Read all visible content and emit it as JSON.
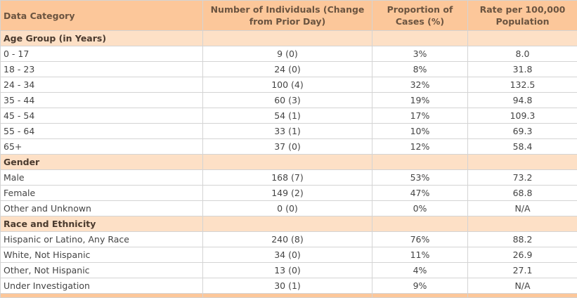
{
  "table": {
    "headers": [
      "Data Category",
      "Number of Individuals (Change from Prior Day)",
      "Proportion of Cases (%)",
      "Rate per 100,000 Population"
    ],
    "sections": [
      {
        "title": "Age Group (in Years)",
        "rows": [
          [
            "0 - 17",
            "9 (0)",
            "3%",
            "8.0"
          ],
          [
            "18 - 23",
            "24 (0)",
            "8%",
            "31.8"
          ],
          [
            "24 - 34",
            "100 (4)",
            "32%",
            "132.5"
          ],
          [
            "35 - 44",
            "60 (3)",
            "19%",
            "94.8"
          ],
          [
            "45 - 54",
            "54 (1)",
            "17%",
            "109.3"
          ],
          [
            "55 - 64",
            "33 (1)",
            "10%",
            "69.3"
          ],
          [
            "65+",
            "37 (0)",
            "12%",
            "58.4"
          ]
        ]
      },
      {
        "title": "Gender",
        "rows": [
          [
            "Male",
            "168 (7)",
            "53%",
            "73.2"
          ],
          [
            "Female",
            "149 (2)",
            "47%",
            "68.8"
          ],
          [
            "Other and Unknown",
            "0 (0)",
            "0%",
            "N/A"
          ]
        ]
      },
      {
        "title": "Race and Ethnicity",
        "rows": [
          [
            "Hispanic or Latino, Any Race",
            "240 (8)",
            "76%",
            "88.2"
          ],
          [
            "White, Not Hispanic",
            "34 (0)",
            "11%",
            "26.9"
          ],
          [
            "Other, Not Hispanic",
            "13 (0)",
            "4%",
            "27.1"
          ],
          [
            "Under Investigation",
            "30 (1)",
            "9%",
            "N/A"
          ]
        ]
      }
    ]
  }
}
